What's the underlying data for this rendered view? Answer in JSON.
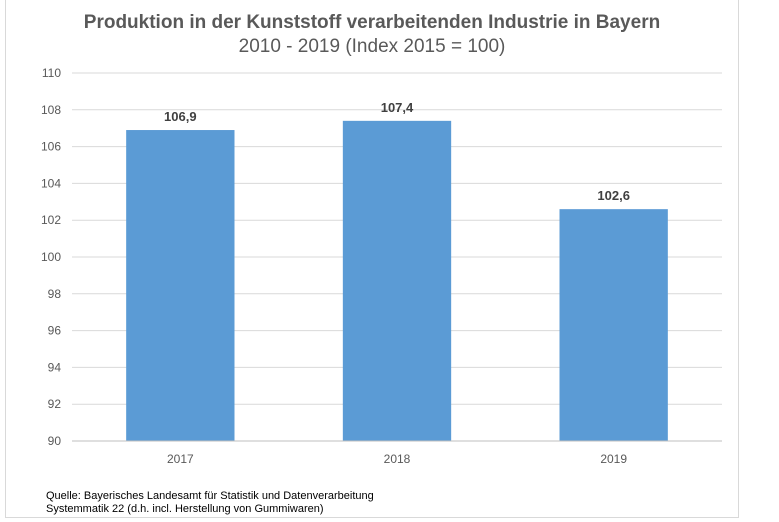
{
  "chart_data": {
    "type": "bar",
    "title": "Produktion in der Kunststoff verarbeitenden Industrie in Bayern",
    "subtitle": "2010 - 2019 (Index 2015 = 100)",
    "categories": [
      "2017",
      "2018",
      "2019"
    ],
    "values": [
      106.9,
      107.4,
      102.6
    ],
    "value_labels": [
      "106,9",
      "107,4",
      "102,6"
    ],
    "ylim": [
      90,
      110
    ],
    "yticks": [
      90,
      92,
      94,
      96,
      98,
      100,
      102,
      104,
      106,
      108,
      110
    ],
    "grid": true,
    "bar_color": "#5b9bd5",
    "grid_color": "#d9d9d9",
    "axis_color": "#bfbfbf",
    "legend": "none"
  },
  "source": {
    "line1": "Quelle:  Bayerisches Landesamt für Statistik und Datenverarbeitung",
    "line2": "Systemmatik 22 (d.h. incl. Herstellung von Gummiwaren)"
  }
}
